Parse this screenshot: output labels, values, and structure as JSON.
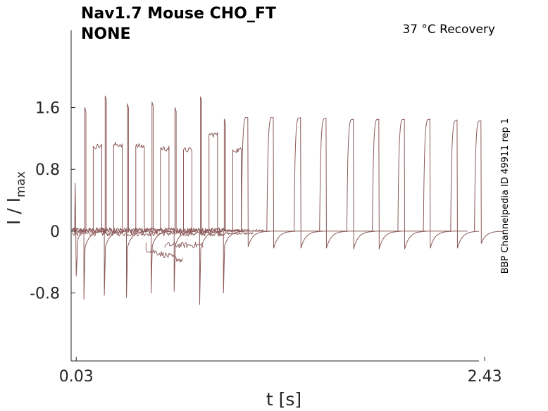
{
  "chart_data": {
    "type": "line",
    "title": {
      "line1": "Nav1.7  Mouse  CHO_FT",
      "line2": "NONE"
    },
    "condition": "37 °C  Recovery",
    "side_label": "BBP Channelpedia ID 49911 rep 1",
    "xlabel": "t [s]",
    "ylabel": {
      "main": "I / I",
      "sub": "max"
    },
    "xlim": [
      0.0,
      2.5
    ],
    "ylim": [
      -1.68,
      2.6
    ],
    "x_ticks": [
      {
        "value": 0.03,
        "label": "0.03"
      },
      {
        "value": 2.43,
        "label": "2.43"
      }
    ],
    "y_ticks": [
      {
        "value": 1.6,
        "label": "1.6"
      },
      {
        "value": 0.8,
        "label": "0.8"
      },
      {
        "value": 0,
        "label": "0"
      },
      {
        "value": -0.8,
        "label": "-0.8"
      }
    ],
    "series_color": "#8c5a5a",
    "pulses": [
      {
        "t": 0.075,
        "neg": -0.88,
        "pos": 1.6,
        "plateau": 1.1,
        "late_pos": false
      },
      {
        "t": 0.195,
        "neg": -0.83,
        "pos": 1.75,
        "plateau": 1.12,
        "late_pos": false
      },
      {
        "t": 0.325,
        "neg": -0.86,
        "pos": 1.65,
        "plateau": 1.1,
        "late_pos": false
      },
      {
        "t": 0.47,
        "neg": -0.8,
        "pos": 1.67,
        "plateau": 1.07,
        "late_pos": false
      },
      {
        "t": 0.605,
        "neg": -0.78,
        "pos": 1.6,
        "plateau": 1.05,
        "late_pos": false
      },
      {
        "t": 0.755,
        "neg": -0.95,
        "pos": 1.74,
        "plateau": 1.25,
        "late_pos": false
      },
      {
        "t": 0.895,
        "neg": -0.8,
        "pos": 1.45,
        "plateau": 1.05,
        "late_pos": false
      },
      {
        "t": 1.04,
        "neg": -0.2,
        "pos": 1.5,
        "plateau": 1.47,
        "late_pos": true
      },
      {
        "t": 1.19,
        "neg": -0.22,
        "pos": 1.5,
        "plateau": 1.47,
        "late_pos": true
      },
      {
        "t": 1.35,
        "neg": -0.22,
        "pos": 1.49,
        "plateau": 1.47,
        "late_pos": true
      },
      {
        "t": 1.5,
        "neg": -0.22,
        "pos": 1.48,
        "plateau": 1.46,
        "late_pos": true
      },
      {
        "t": 1.66,
        "neg": -0.23,
        "pos": 1.47,
        "plateau": 1.45,
        "late_pos": true
      },
      {
        "t": 1.81,
        "neg": -0.23,
        "pos": 1.47,
        "plateau": 1.45,
        "late_pos": true
      },
      {
        "t": 1.96,
        "neg": -0.23,
        "pos": 1.47,
        "plateau": 1.45,
        "late_pos": true
      },
      {
        "t": 2.11,
        "neg": -0.22,
        "pos": 1.47,
        "plateau": 1.45,
        "late_pos": true
      },
      {
        "t": 2.27,
        "neg": -0.22,
        "pos": 1.45,
        "plateau": 1.44,
        "late_pos": true
      },
      {
        "t": 2.41,
        "neg": -0.16,
        "pos": 1.45,
        "plateau": 1.43,
        "late_pos": true
      }
    ]
  }
}
